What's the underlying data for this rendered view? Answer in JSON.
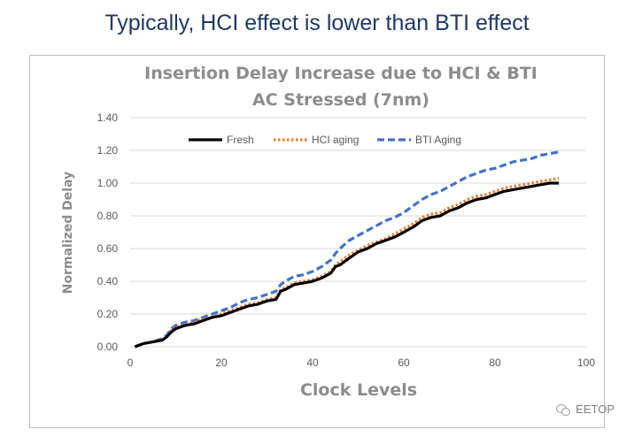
{
  "headline": "Typically, HCI effect is lower than BTI effect",
  "watermark": "EETOP",
  "watermark_icon": "wechat-icon",
  "chart_data": {
    "type": "line",
    "title_lines": [
      "Insertion Delay Increase due to HCI & BTI",
      "AC Stressed (7nm)"
    ],
    "xlabel": "Clock Levels",
    "ylabel": "Normalized Delay",
    "xlim": [
      0,
      100
    ],
    "ylim": [
      0,
      1.4
    ],
    "xticks": [
      0,
      20,
      40,
      60,
      80,
      100
    ],
    "yticks": [
      "0.00",
      "0.20",
      "0.40",
      "0.60",
      "0.80",
      "1.00",
      "1.20",
      "1.40"
    ],
    "grid": true,
    "legend_position": "top",
    "series": [
      {
        "name": "Fresh",
        "color": "#000000",
        "dash": "solid",
        "x": [
          1,
          3,
          5,
          7,
          8,
          9,
          10,
          12,
          14,
          16,
          18,
          20,
          22,
          24,
          26,
          28,
          30,
          32,
          33,
          34,
          36,
          38,
          40,
          42,
          44,
          45,
          46,
          48,
          50,
          52,
          54,
          56,
          58,
          60,
          62,
          64,
          66,
          68,
          70,
          72,
          74,
          76,
          78,
          80,
          82,
          84,
          86,
          88,
          90,
          92,
          94
        ],
        "y": [
          0.0,
          0.02,
          0.03,
          0.04,
          0.06,
          0.09,
          0.11,
          0.13,
          0.14,
          0.16,
          0.18,
          0.19,
          0.21,
          0.23,
          0.25,
          0.26,
          0.28,
          0.29,
          0.34,
          0.35,
          0.38,
          0.39,
          0.4,
          0.42,
          0.45,
          0.49,
          0.5,
          0.54,
          0.58,
          0.6,
          0.63,
          0.65,
          0.67,
          0.7,
          0.73,
          0.77,
          0.79,
          0.8,
          0.83,
          0.85,
          0.88,
          0.9,
          0.91,
          0.93,
          0.95,
          0.96,
          0.97,
          0.98,
          0.99,
          1.0,
          1.0
        ],
        "width": 3.2
      },
      {
        "name": "HCI aging",
        "color": "#ed7d31",
        "dash": "dotted",
        "x": [
          1,
          3,
          5,
          7,
          8,
          9,
          10,
          12,
          14,
          16,
          18,
          20,
          22,
          24,
          26,
          28,
          30,
          32,
          33,
          34,
          36,
          38,
          40,
          42,
          44,
          45,
          46,
          48,
          50,
          52,
          54,
          56,
          58,
          60,
          62,
          64,
          66,
          68,
          70,
          72,
          74,
          76,
          78,
          80,
          82,
          84,
          86,
          88,
          90,
          92,
          94
        ],
        "y": [
          0.0,
          0.02,
          0.03,
          0.04,
          0.06,
          0.1,
          0.12,
          0.13,
          0.15,
          0.17,
          0.18,
          0.2,
          0.22,
          0.24,
          0.26,
          0.27,
          0.29,
          0.3,
          0.35,
          0.36,
          0.39,
          0.4,
          0.41,
          0.43,
          0.46,
          0.5,
          0.52,
          0.56,
          0.59,
          0.62,
          0.64,
          0.66,
          0.69,
          0.72,
          0.75,
          0.79,
          0.81,
          0.82,
          0.85,
          0.87,
          0.9,
          0.92,
          0.93,
          0.95,
          0.97,
          0.98,
          0.99,
          1.0,
          1.01,
          1.02,
          1.03
        ],
        "width": 3.2
      },
      {
        "name": "BTI Aging",
        "color": "#4472c4",
        "dash": "dashed",
        "x": [
          1,
          3,
          5,
          7,
          8,
          9,
          10,
          12,
          14,
          16,
          18,
          20,
          22,
          24,
          26,
          28,
          30,
          32,
          33,
          34,
          36,
          38,
          40,
          42,
          44,
          45,
          46,
          48,
          50,
          52,
          54,
          56,
          58,
          60,
          62,
          64,
          66,
          68,
          70,
          72,
          74,
          76,
          78,
          80,
          82,
          84,
          86,
          88,
          90,
          92,
          94
        ],
        "y": [
          0.0,
          0.02,
          0.03,
          0.05,
          0.07,
          0.11,
          0.13,
          0.15,
          0.16,
          0.18,
          0.2,
          0.22,
          0.24,
          0.27,
          0.29,
          0.3,
          0.32,
          0.34,
          0.38,
          0.4,
          0.43,
          0.44,
          0.46,
          0.49,
          0.53,
          0.57,
          0.6,
          0.65,
          0.68,
          0.71,
          0.74,
          0.77,
          0.79,
          0.82,
          0.86,
          0.9,
          0.93,
          0.95,
          0.98,
          1.01,
          1.04,
          1.06,
          1.08,
          1.09,
          1.11,
          1.13,
          1.14,
          1.15,
          1.17,
          1.18,
          1.19
        ],
        "width": 3.2
      }
    ]
  }
}
